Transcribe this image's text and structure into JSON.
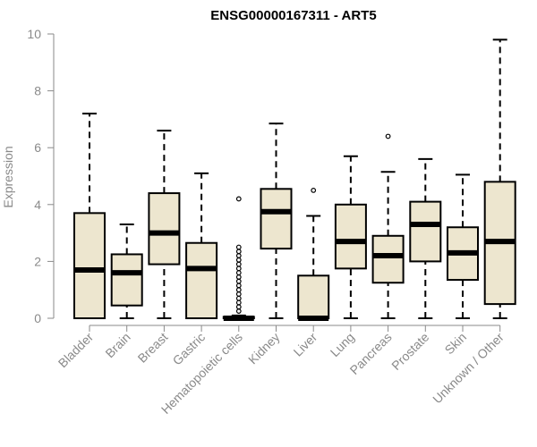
{
  "chart_data": {
    "type": "boxplot",
    "title": "ENSG00000167311 - ART5",
    "ylabel": "Expression",
    "xlabel": "",
    "ylim": [
      0,
      10
    ],
    "yticks": [
      0,
      2,
      4,
      6,
      8,
      10
    ],
    "box_fill": "#ede6cf",
    "categories": [
      "Bladder",
      "Brain",
      "Breast",
      "Gastric",
      "Hematopoietic cells",
      "Kidney",
      "Liver",
      "Lung",
      "Pancreas",
      "Prostate",
      "Skin",
      "Unknown / Other"
    ],
    "boxes": [
      {
        "min": 0,
        "q1": 0,
        "median": 1.7,
        "q3": 3.7,
        "max": 7.2,
        "outliers": []
      },
      {
        "min": 0,
        "q1": 0.45,
        "median": 1.6,
        "q3": 2.25,
        "max": 3.3,
        "outliers": []
      },
      {
        "min": 0,
        "q1": 1.9,
        "median": 3.0,
        "q3": 4.4,
        "max": 6.6,
        "outliers": []
      },
      {
        "min": 0,
        "q1": 0,
        "median": 1.75,
        "q3": 2.65,
        "max": 5.1,
        "outliers": []
      },
      {
        "min": 0,
        "q1": 0,
        "median": 0,
        "q3": 0.05,
        "max": 0.1,
        "outliers": [
          0.25,
          0.4,
          0.55,
          0.7,
          0.85,
          1.0,
          1.15,
          1.3,
          1.45,
          1.6,
          1.75,
          1.9,
          2.05,
          2.2,
          2.35,
          2.5,
          4.2
        ]
      },
      {
        "min": 0,
        "q1": 2.45,
        "median": 3.75,
        "q3": 4.55,
        "max": 6.85,
        "outliers": []
      },
      {
        "min": 0,
        "q1": 0,
        "median": 0,
        "q3": 1.5,
        "max": 3.6,
        "outliers": [
          4.5
        ]
      },
      {
        "min": 0,
        "q1": 1.75,
        "median": 2.7,
        "q3": 4.0,
        "max": 5.7,
        "outliers": []
      },
      {
        "min": 0,
        "q1": 1.25,
        "median": 2.2,
        "q3": 2.9,
        "max": 5.15,
        "outliers": [
          6.4
        ]
      },
      {
        "min": 0,
        "q1": 2.0,
        "median": 3.3,
        "q3": 4.1,
        "max": 5.6,
        "outliers": []
      },
      {
        "min": 0,
        "q1": 1.35,
        "median": 2.3,
        "q3": 3.2,
        "max": 5.05,
        "outliers": []
      },
      {
        "min": 0,
        "q1": 0.5,
        "median": 2.7,
        "q3": 4.8,
        "max": 9.8,
        "outliers": []
      }
    ]
  }
}
